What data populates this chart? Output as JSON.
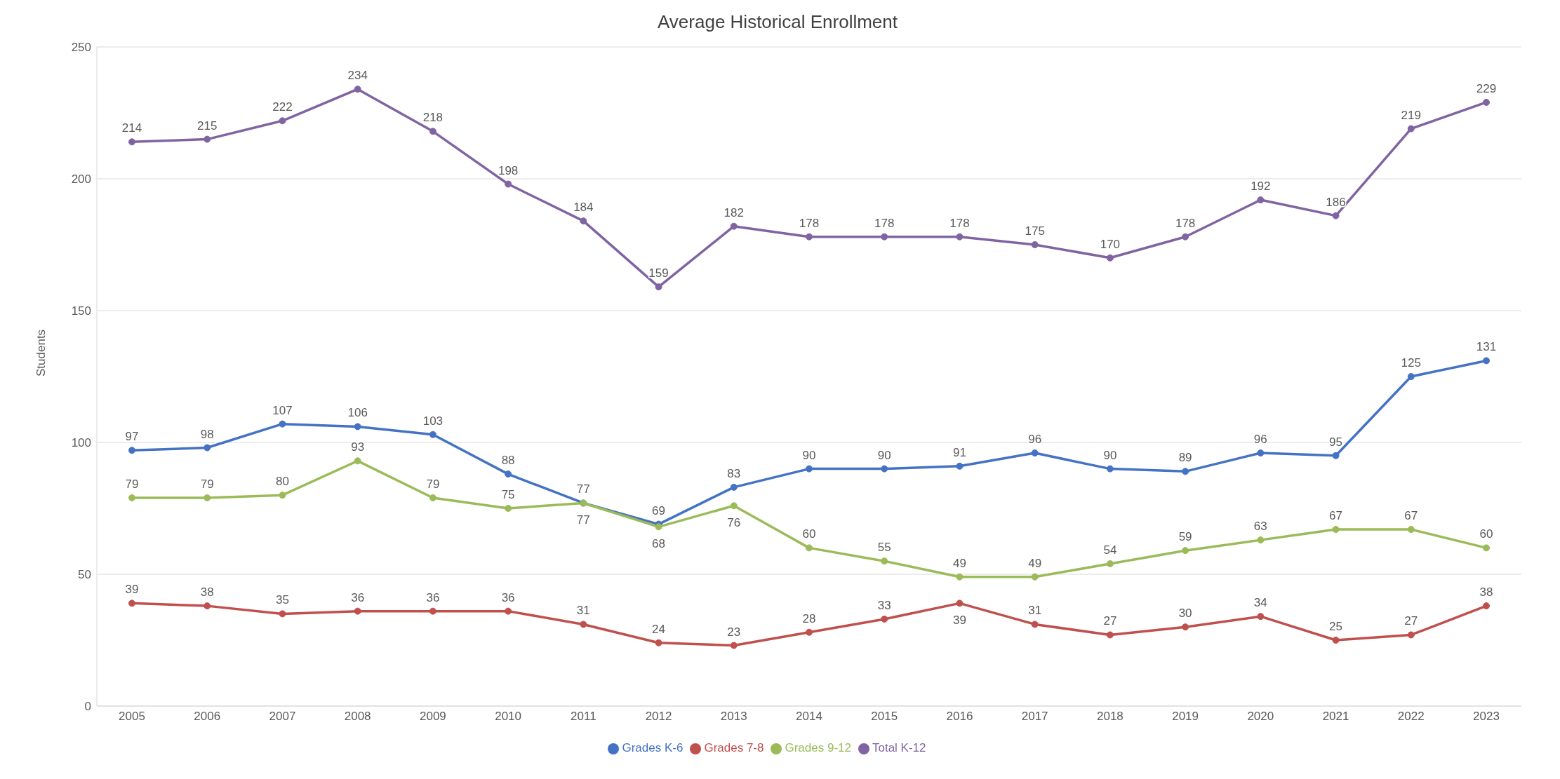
{
  "chart_data": {
    "type": "line",
    "title": "Average Historical Enrollment",
    "ylabel": "Students",
    "categories": [
      "2005",
      "2006",
      "2007",
      "2008",
      "2009",
      "2010",
      "2011",
      "2012",
      "2013",
      "2014",
      "2015",
      "2016",
      "2017",
      "2018",
      "2019",
      "2020",
      "2021",
      "2022",
      "2023"
    ],
    "series": [
      {
        "name": "Grades K-6",
        "color": "#4472c4",
        "values": [
          97,
          98,
          107,
          106,
          103,
          88,
          77,
          69,
          83,
          90,
          90,
          91,
          96,
          90,
          89,
          96,
          95,
          125,
          131
        ]
      },
      {
        "name": "Grades 7-8",
        "color": "#c0504d",
        "values": [
          39,
          38,
          35,
          36,
          36,
          36,
          31,
          24,
          23,
          28,
          33,
          39,
          31,
          27,
          30,
          34,
          25,
          27,
          38
        ]
      },
      {
        "name": "Grades 9-12",
        "color": "#9bbb59",
        "values": [
          79,
          79,
          80,
          93,
          79,
          75,
          77,
          68,
          76,
          60,
          55,
          49,
          49,
          54,
          59,
          63,
          67,
          67,
          60
        ]
      },
      {
        "name": "Total K-12",
        "color": "#8064a2",
        "values": [
          214,
          215,
          222,
          234,
          218,
          198,
          184,
          159,
          182,
          178,
          178,
          178,
          175,
          170,
          178,
          192,
          186,
          219,
          229
        ]
      }
    ],
    "ylim": [
      0,
      250
    ],
    "yticks": [
      0,
      50,
      100,
      150,
      200,
      250
    ],
    "grid": "y",
    "legend": "bottom",
    "marker": "circle",
    "line_style": "solid",
    "data_labels": true
  }
}
